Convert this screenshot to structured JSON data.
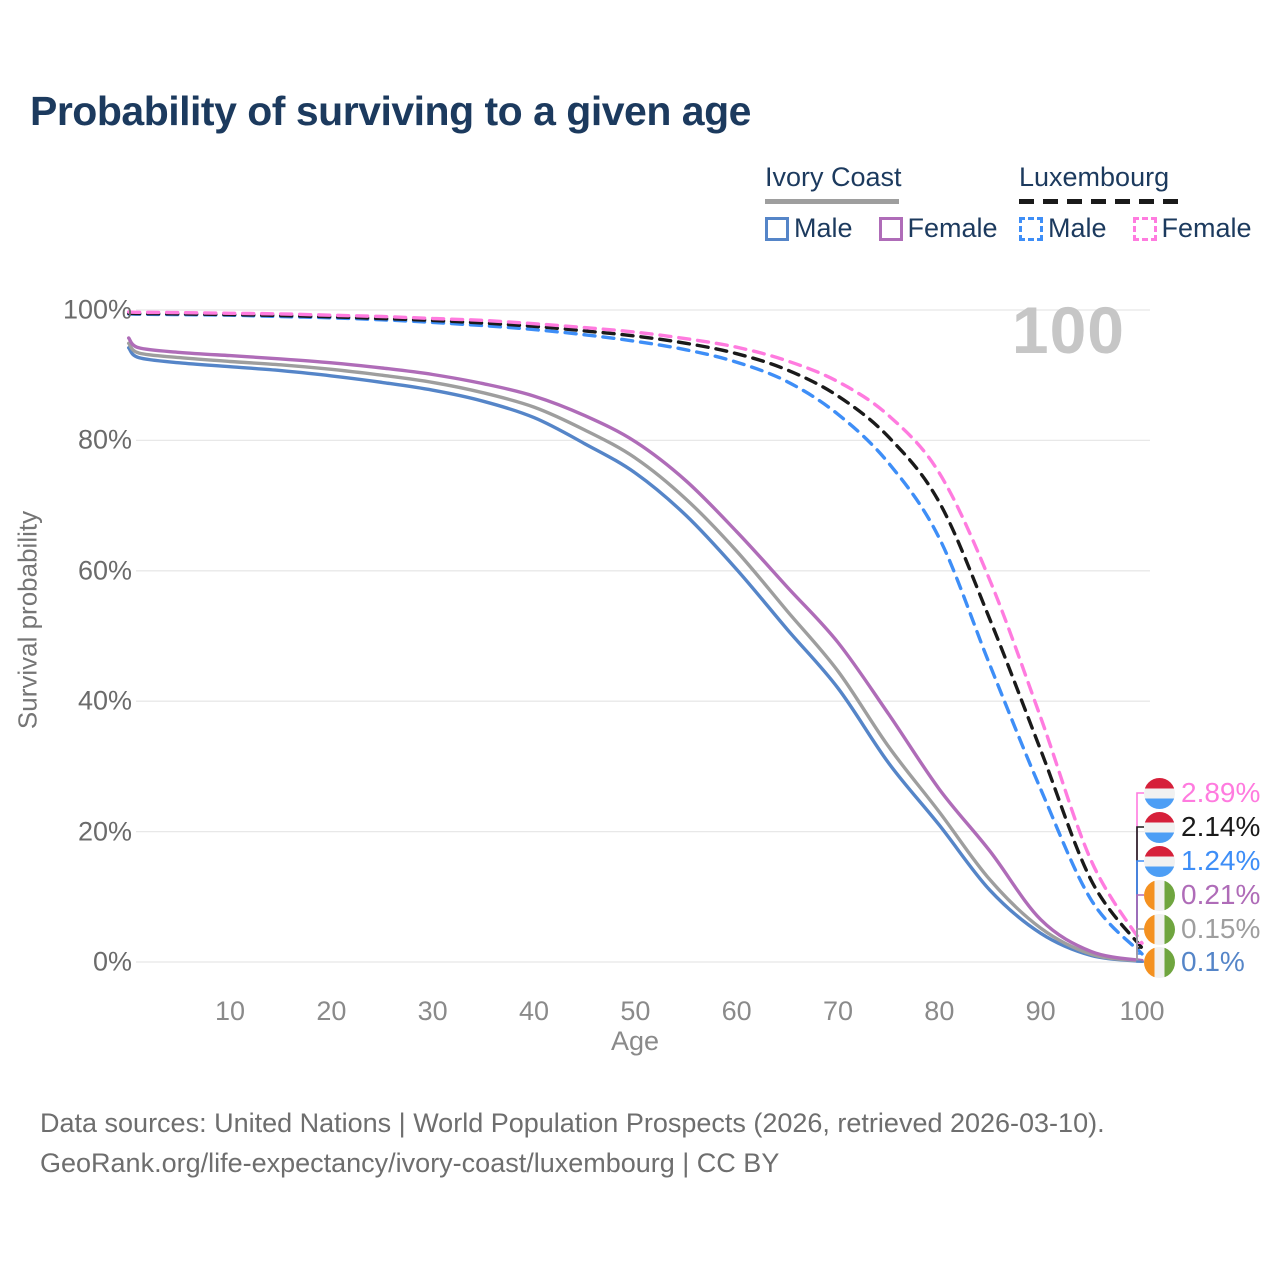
{
  "title": "Probability of surviving to a given age",
  "watermark_age": "100",
  "legend": {
    "groups": [
      {
        "name": "Ivory Coast",
        "line_style": "solid",
        "underline_color": "#9E9E9E",
        "items": [
          {
            "label": "Male",
            "color": "#5585C8",
            "checked": false
          },
          {
            "label": "Female",
            "color": "#AF6CB8",
            "checked": false
          }
        ]
      },
      {
        "name": "Luxembourg",
        "line_style": "dashed",
        "underline_color": "#1A1A1A",
        "items": [
          {
            "label": "Male",
            "color": "#3E8EF7",
            "checked": false
          },
          {
            "label": "Female",
            "color": "#FF7BDF",
            "checked": false
          }
        ]
      }
    ]
  },
  "end_labels": [
    {
      "value": "2.89%",
      "color": "#FF7BDF",
      "flag": "luxembourg",
      "series": "Luxembourg Female"
    },
    {
      "value": "2.14%",
      "color": "#1A1A1A",
      "flag": "luxembourg",
      "series": "Luxembourg Both sexes"
    },
    {
      "value": "1.24%",
      "color": "#3E8EF7",
      "flag": "luxembourg",
      "series": "Luxembourg Male"
    },
    {
      "value": "0.21%",
      "color": "#AF6CB8",
      "flag": "ivory-coast",
      "series": "Ivory Coast Female"
    },
    {
      "value": "0.15%",
      "color": "#9E9E9E",
      "flag": "ivory-coast",
      "series": "Ivory Coast Both sexes"
    },
    {
      "value": "0.1%",
      "color": "#5585C8",
      "flag": "ivory-coast",
      "series": "Ivory Coast Male"
    }
  ],
  "footer": {
    "line1": "Data sources: United Nations | World Population Prospects (2026, retrieved 2026-03-10).",
    "line2": "GeoRank.org/life-expectancy/ivory-coast/luxembourg | CC BY"
  },
  "chart_data": {
    "type": "line",
    "title": "Probability of surviving to a given age",
    "xlabel": "Age",
    "ylabel": "Survival probability",
    "xlim": [
      0,
      100
    ],
    "ylim": [
      0,
      100
    ],
    "x_ticks": [
      10,
      20,
      30,
      40,
      50,
      60,
      70,
      80,
      90,
      100
    ],
    "y_tick_labels": [
      "0%",
      "20%",
      "40%",
      "60%",
      "80%",
      "100%"
    ],
    "grid": "horizontal",
    "legend_position": "top-right",
    "x": [
      0,
      1,
      5,
      10,
      15,
      20,
      25,
      30,
      35,
      40,
      45,
      50,
      55,
      60,
      65,
      70,
      75,
      80,
      85,
      90,
      95,
      100
    ],
    "series": [
      {
        "name": "Ivory Coast Male",
        "country": "Ivory Coast",
        "sex": "Male",
        "style": "solid",
        "color": "#5585C8",
        "values": [
          94.2,
          92.7,
          91.9,
          91.3,
          90.7,
          89.9,
          88.9,
          87.7,
          86.0,
          83.5,
          79.5,
          75.0,
          68.5,
          60.2,
          51.0,
          42.0,
          30.5,
          21.0,
          11.0,
          4.4,
          1.0,
          0.1
        ],
        "end_value_pct": 0.1
      },
      {
        "name": "Ivory Coast Both sexes",
        "country": "Ivory Coast",
        "sex": "Both",
        "style": "solid",
        "color": "#9E9E9E",
        "values": [
          94.9,
          93.4,
          92.7,
          92.1,
          91.6,
          90.9,
          90.0,
          88.9,
          87.3,
          85.1,
          81.6,
          77.3,
          71.0,
          63.0,
          53.8,
          44.6,
          33.0,
          23.0,
          12.6,
          5.2,
          1.2,
          0.15
        ],
        "end_value_pct": 0.15
      },
      {
        "name": "Ivory Coast Female",
        "country": "Ivory Coast",
        "sex": "Female",
        "style": "solid",
        "color": "#AF6CB8",
        "values": [
          95.7,
          94.2,
          93.5,
          93.0,
          92.5,
          91.9,
          91.1,
          90.1,
          88.7,
          86.8,
          83.8,
          79.8,
          73.8,
          66.0,
          57.5,
          49.0,
          38.0,
          26.5,
          17.0,
          6.5,
          1.6,
          0.21
        ],
        "end_value_pct": 0.21
      },
      {
        "name": "Luxembourg Male",
        "country": "Luxembourg",
        "sex": "Male",
        "style": "dashed",
        "color": "#3E8EF7",
        "values": [
          99.4,
          99.35,
          99.3,
          99.2,
          99.0,
          98.8,
          98.5,
          98.1,
          97.6,
          97.0,
          96.2,
          95.2,
          93.9,
          92.0,
          89.0,
          84.0,
          76.5,
          65.0,
          45.5,
          26.5,
          9.5,
          1.24
        ],
        "end_value_pct": 1.24
      },
      {
        "name": "Luxembourg Both sexes",
        "country": "Luxembourg",
        "sex": "Both",
        "style": "dashed",
        "color": "#1A1A1A",
        "values": [
          99.5,
          99.45,
          99.4,
          99.3,
          99.15,
          98.95,
          98.7,
          98.4,
          98.0,
          97.5,
          96.8,
          96.0,
          94.9,
          93.3,
          90.8,
          86.8,
          80.5,
          70.5,
          52.5,
          32.5,
          12.5,
          2.14
        ],
        "end_value_pct": 2.14
      },
      {
        "name": "Luxembourg Female",
        "country": "Luxembourg",
        "sex": "Female",
        "style": "dashed",
        "color": "#FF7BDF",
        "values": [
          99.7,
          99.65,
          99.6,
          99.5,
          99.4,
          99.2,
          99.0,
          98.7,
          98.4,
          97.9,
          97.3,
          96.6,
          95.6,
          94.3,
          92.2,
          89.0,
          83.8,
          75.0,
          58.5,
          37.5,
          15.5,
          2.89
        ],
        "end_value_pct": 2.89
      }
    ]
  }
}
